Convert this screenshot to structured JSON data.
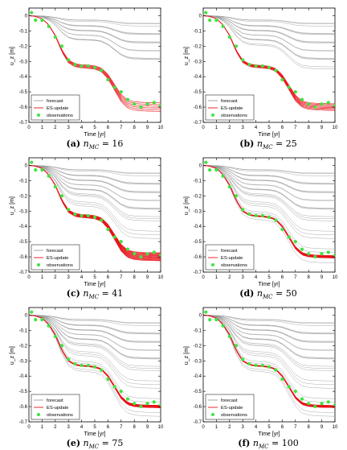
{
  "chart_data": [
    {
      "type": "line",
      "panel_label": "(a)",
      "caption_var": "n",
      "caption_sub": "MC",
      "caption_value": "= 16",
      "n_mc": 16,
      "ens_width": 0.028
    },
    {
      "type": "line",
      "panel_label": "(b)",
      "caption_var": "n",
      "caption_sub": "MC",
      "caption_value": "= 25",
      "n_mc": 25,
      "ens_width": 0.022
    },
    {
      "type": "line",
      "panel_label": "(c)",
      "caption_var": "n",
      "caption_sub": "MC",
      "caption_value": "= 41",
      "n_mc": 41,
      "ens_width": 0.026
    },
    {
      "type": "line",
      "panel_label": "(d)",
      "caption_var": "n",
      "caption_sub": "MC",
      "caption_value": "= 50",
      "n_mc": 50,
      "ens_width": 0.008
    },
    {
      "type": "line",
      "panel_label": "(e)",
      "caption_var": "n",
      "caption_sub": "MC",
      "caption_value": "= 75",
      "n_mc": 75,
      "ens_width": 0.008
    },
    {
      "type": "line",
      "panel_label": "(f)",
      "caption_var": "n",
      "caption_sub": "MC",
      "caption_value": "= 100",
      "n_mc": 100,
      "ens_width": 0.007
    }
  ],
  "shared": {
    "xlabel": "Time [yr]",
    "ylabel": "u_z [m]",
    "xlim": [
      0,
      10
    ],
    "ylim": [
      -0.7,
      0.05
    ],
    "xticks": [
      0,
      1,
      2,
      3,
      4,
      5,
      6,
      7,
      8,
      9,
      10
    ],
    "yticks": [
      0,
      -0.1,
      -0.2,
      -0.3,
      -0.4,
      -0.5,
      -0.6,
      -0.7
    ],
    "ytick_labels": [
      "0",
      "-0.1",
      "-0.2",
      "-0.3",
      "-0.4",
      "-0.5",
      "-0.6",
      "-0.7"
    ],
    "legend": {
      "placement": "bottom-left",
      "entries": [
        {
          "label": "forecast",
          "color": "#9a9a9a",
          "kind": "line"
        },
        {
          "label": "ES-update",
          "color": "#e8141b",
          "kind": "line"
        },
        {
          "label": "observations",
          "color": "#3ee53e",
          "kind": "marker"
        }
      ]
    },
    "colors": {
      "forecast": "#9a9a9a",
      "update": "#e8141b",
      "observations": "#3ee53e"
    },
    "observations": {
      "x": [
        0.2,
        0.5,
        1.0,
        1.5,
        2.0,
        2.5,
        3.0,
        3.5,
        4.0,
        4.5,
        5.0,
        5.5,
        6.0,
        6.5,
        7.0,
        7.5,
        8.0,
        8.5,
        9.0,
        9.5,
        10.0
      ],
      "y": [
        0.02,
        -0.03,
        -0.03,
        -0.07,
        -0.14,
        -0.2,
        -0.29,
        -0.32,
        -0.33,
        -0.33,
        -0.34,
        -0.36,
        -0.42,
        -0.47,
        -0.5,
        -0.55,
        -0.58,
        -0.6,
        -0.58,
        -0.57,
        -0.59
      ]
    },
    "mean_curve": {
      "x": [
        0,
        0.5,
        1.0,
        1.5,
        2.0,
        2.5,
        3.0,
        3.5,
        4.0,
        4.5,
        5.0,
        5.5,
        6.0,
        6.5,
        7.0,
        7.5,
        8.0,
        8.5,
        9.0,
        9.5,
        10.0
      ],
      "y": [
        0,
        -0.005,
        -0.02,
        -0.06,
        -0.13,
        -0.23,
        -0.3,
        -0.325,
        -0.332,
        -0.335,
        -0.34,
        -0.355,
        -0.4,
        -0.47,
        -0.54,
        -0.58,
        -0.592,
        -0.596,
        -0.598,
        -0.599,
        -0.6
      ]
    },
    "forecast_final_values": [
      -0.03,
      -0.05,
      -0.08,
      -0.1,
      -0.12,
      -0.14,
      -0.16,
      -0.18,
      -0.2,
      -0.22,
      -0.24,
      -0.26,
      -0.28,
      -0.3,
      -0.32,
      -0.35,
      -0.38,
      -0.42,
      -0.46,
      -0.5,
      -0.54,
      -0.58,
      -0.62,
      -0.66
    ]
  }
}
